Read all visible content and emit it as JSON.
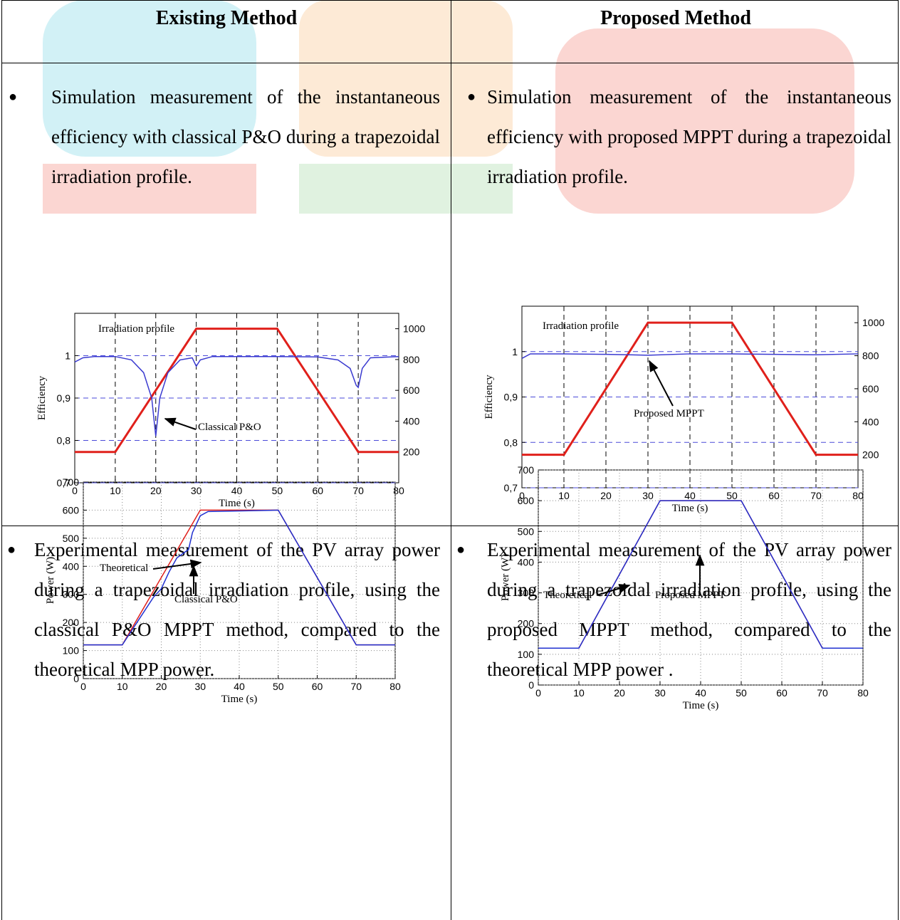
{
  "table": {
    "header": [
      "Existing Method",
      "Proposed Method"
    ],
    "rows": [
      [
        "Simulation measurement of the instantaneous efficiency with classical P&O during a trapezoidal irradiation profile.",
        "Simulation measurement of the instantaneous efficiency with proposed MPPT during a trapezoidal irradiation profile."
      ],
      [
        "Experimental measurement of the PV array power during a trapezoidal irradiation profile, using the classical P&O MPPT method, compared to the theoretical MPP power.",
        "Experimental measurement of the PV array power during a trapezoidal irradiation profile, using the proposed MPPT method, compared to the theoretical MPP power ."
      ]
    ]
  },
  "chart_data": [
    {
      "type": "line",
      "xlabel": "Time (s)",
      "ylabel": "Efficiency",
      "grid": "dashed",
      "x": [
        0,
        2,
        5,
        10,
        14,
        17,
        19,
        20,
        21,
        23,
        26,
        29,
        30,
        31,
        34,
        50,
        60,
        65,
        68,
        69.5,
        70,
        71,
        73,
        80
      ],
      "xlim": [
        0,
        80
      ],
      "xticks": [
        0,
        10,
        20,
        30,
        40,
        50,
        60,
        70,
        80
      ],
      "ylim": [
        0.7,
        1.1
      ],
      "yticks": [
        {
          "value": 0.7,
          "label": "0,7"
        },
        {
          "value": 0.8,
          "label": "0,8"
        },
        {
          "value": 0.9,
          "label": "0,9"
        },
        1
      ],
      "y2lim": [
        0,
        1100
      ],
      "y2ticks": [
        200,
        400,
        600,
        800,
        1000
      ],
      "series": [
        {
          "name": "Irradiation profile",
          "color": "#e0201b",
          "axis": "y2",
          "values": [
            200,
            200,
            200,
            200,
            360,
            480,
            560,
            600,
            640,
            720,
            840,
            960,
            1000,
            1000,
            1000,
            1000,
            600,
            400,
            280,
            220,
            200,
            200,
            200,
            200
          ]
        },
        {
          "name": "Classical P&O",
          "color": "#3a3ad0",
          "values": [
            0.985,
            0.995,
            0.998,
            0.998,
            0.99,
            0.96,
            0.9,
            0.81,
            0.9,
            0.96,
            0.99,
            0.995,
            0.975,
            0.99,
            0.998,
            0.998,
            0.997,
            0.99,
            0.97,
            0.93,
            0.925,
            0.97,
            0.995,
            0.998
          ]
        }
      ]
    },
    {
      "type": "line",
      "xlabel": "Time (s)",
      "ylabel": "Efficiency",
      "grid": "dashed",
      "x": [
        0,
        2,
        10,
        20,
        30,
        40,
        50,
        60,
        70,
        80
      ],
      "xlim": [
        0,
        80
      ],
      "xticks": [
        0,
        10,
        20,
        30,
        40,
        50,
        60,
        70,
        80
      ],
      "ylim": [
        0.7,
        1.1
      ],
      "yticks": [
        {
          "value": 0.7,
          "label": "0,7"
        },
        {
          "value": 0.8,
          "label": "0,8"
        },
        {
          "value": 0.9,
          "label": "0,9"
        },
        1
      ],
      "y2lim": [
        0,
        1100
      ],
      "y2ticks": [
        200,
        400,
        600,
        800,
        1000
      ],
      "series": [
        {
          "name": "Irradiation profile",
          "color": "#e0201b",
          "axis": "y2",
          "values": [
            200,
            200,
            200,
            600,
            1000,
            1000,
            1000,
            600,
            200,
            200
          ]
        },
        {
          "name": "Proposed MPPT",
          "color": "#3a3ad0",
          "values": [
            0.985,
            0.995,
            0.995,
            0.994,
            0.992,
            0.995,
            0.995,
            0.994,
            0.993,
            0.995
          ]
        }
      ]
    },
    {
      "type": "line",
      "xlabel": "Time (s)",
      "ylabel": "Power (W)",
      "grid": "dotted",
      "x": [
        0,
        10,
        18,
        20,
        22,
        24,
        27,
        28,
        30,
        32,
        50,
        70,
        80
      ],
      "xlim": [
        0,
        80
      ],
      "xticks": [
        0,
        10,
        20,
        30,
        40,
        50,
        60,
        70,
        80
      ],
      "ylim": [
        0,
        700
      ],
      "yticks": [
        0,
        100,
        200,
        300,
        400,
        500,
        600,
        700
      ],
      "series": [
        {
          "name": "Theoretical",
          "color": "#e0201b",
          "values": [
            120,
            120,
            312,
            360,
            408,
            456,
            528,
            552,
            600,
            600,
            600,
            120,
            120
          ]
        },
        {
          "name": "Classical P&O",
          "color": "#2030d0",
          "values": [
            120,
            120,
            290,
            320,
            380,
            430,
            460,
            520,
            580,
            595,
            600,
            120,
            120
          ]
        }
      ]
    },
    {
      "type": "line",
      "xlabel": "Time (s)",
      "ylabel": "Power (W)",
      "grid": "dotted",
      "x": [
        0,
        10,
        30,
        50,
        70,
        80
      ],
      "xlim": [
        0,
        80
      ],
      "xticks": [
        0,
        10,
        20,
        30,
        40,
        50,
        60,
        70,
        80
      ],
      "ylim": [
        0,
        700
      ],
      "yticks": [
        0,
        100,
        200,
        300,
        400,
        500,
        600,
        700
      ],
      "series": [
        {
          "name": "Theoretical",
          "color": "#e0201b",
          "values": [
            120,
            120,
            600,
            600,
            120,
            120
          ]
        },
        {
          "name": "Proposed MPPT",
          "color": "#2030d0",
          "values": [
            120,
            120,
            600,
            600,
            120,
            120
          ]
        }
      ]
    }
  ]
}
